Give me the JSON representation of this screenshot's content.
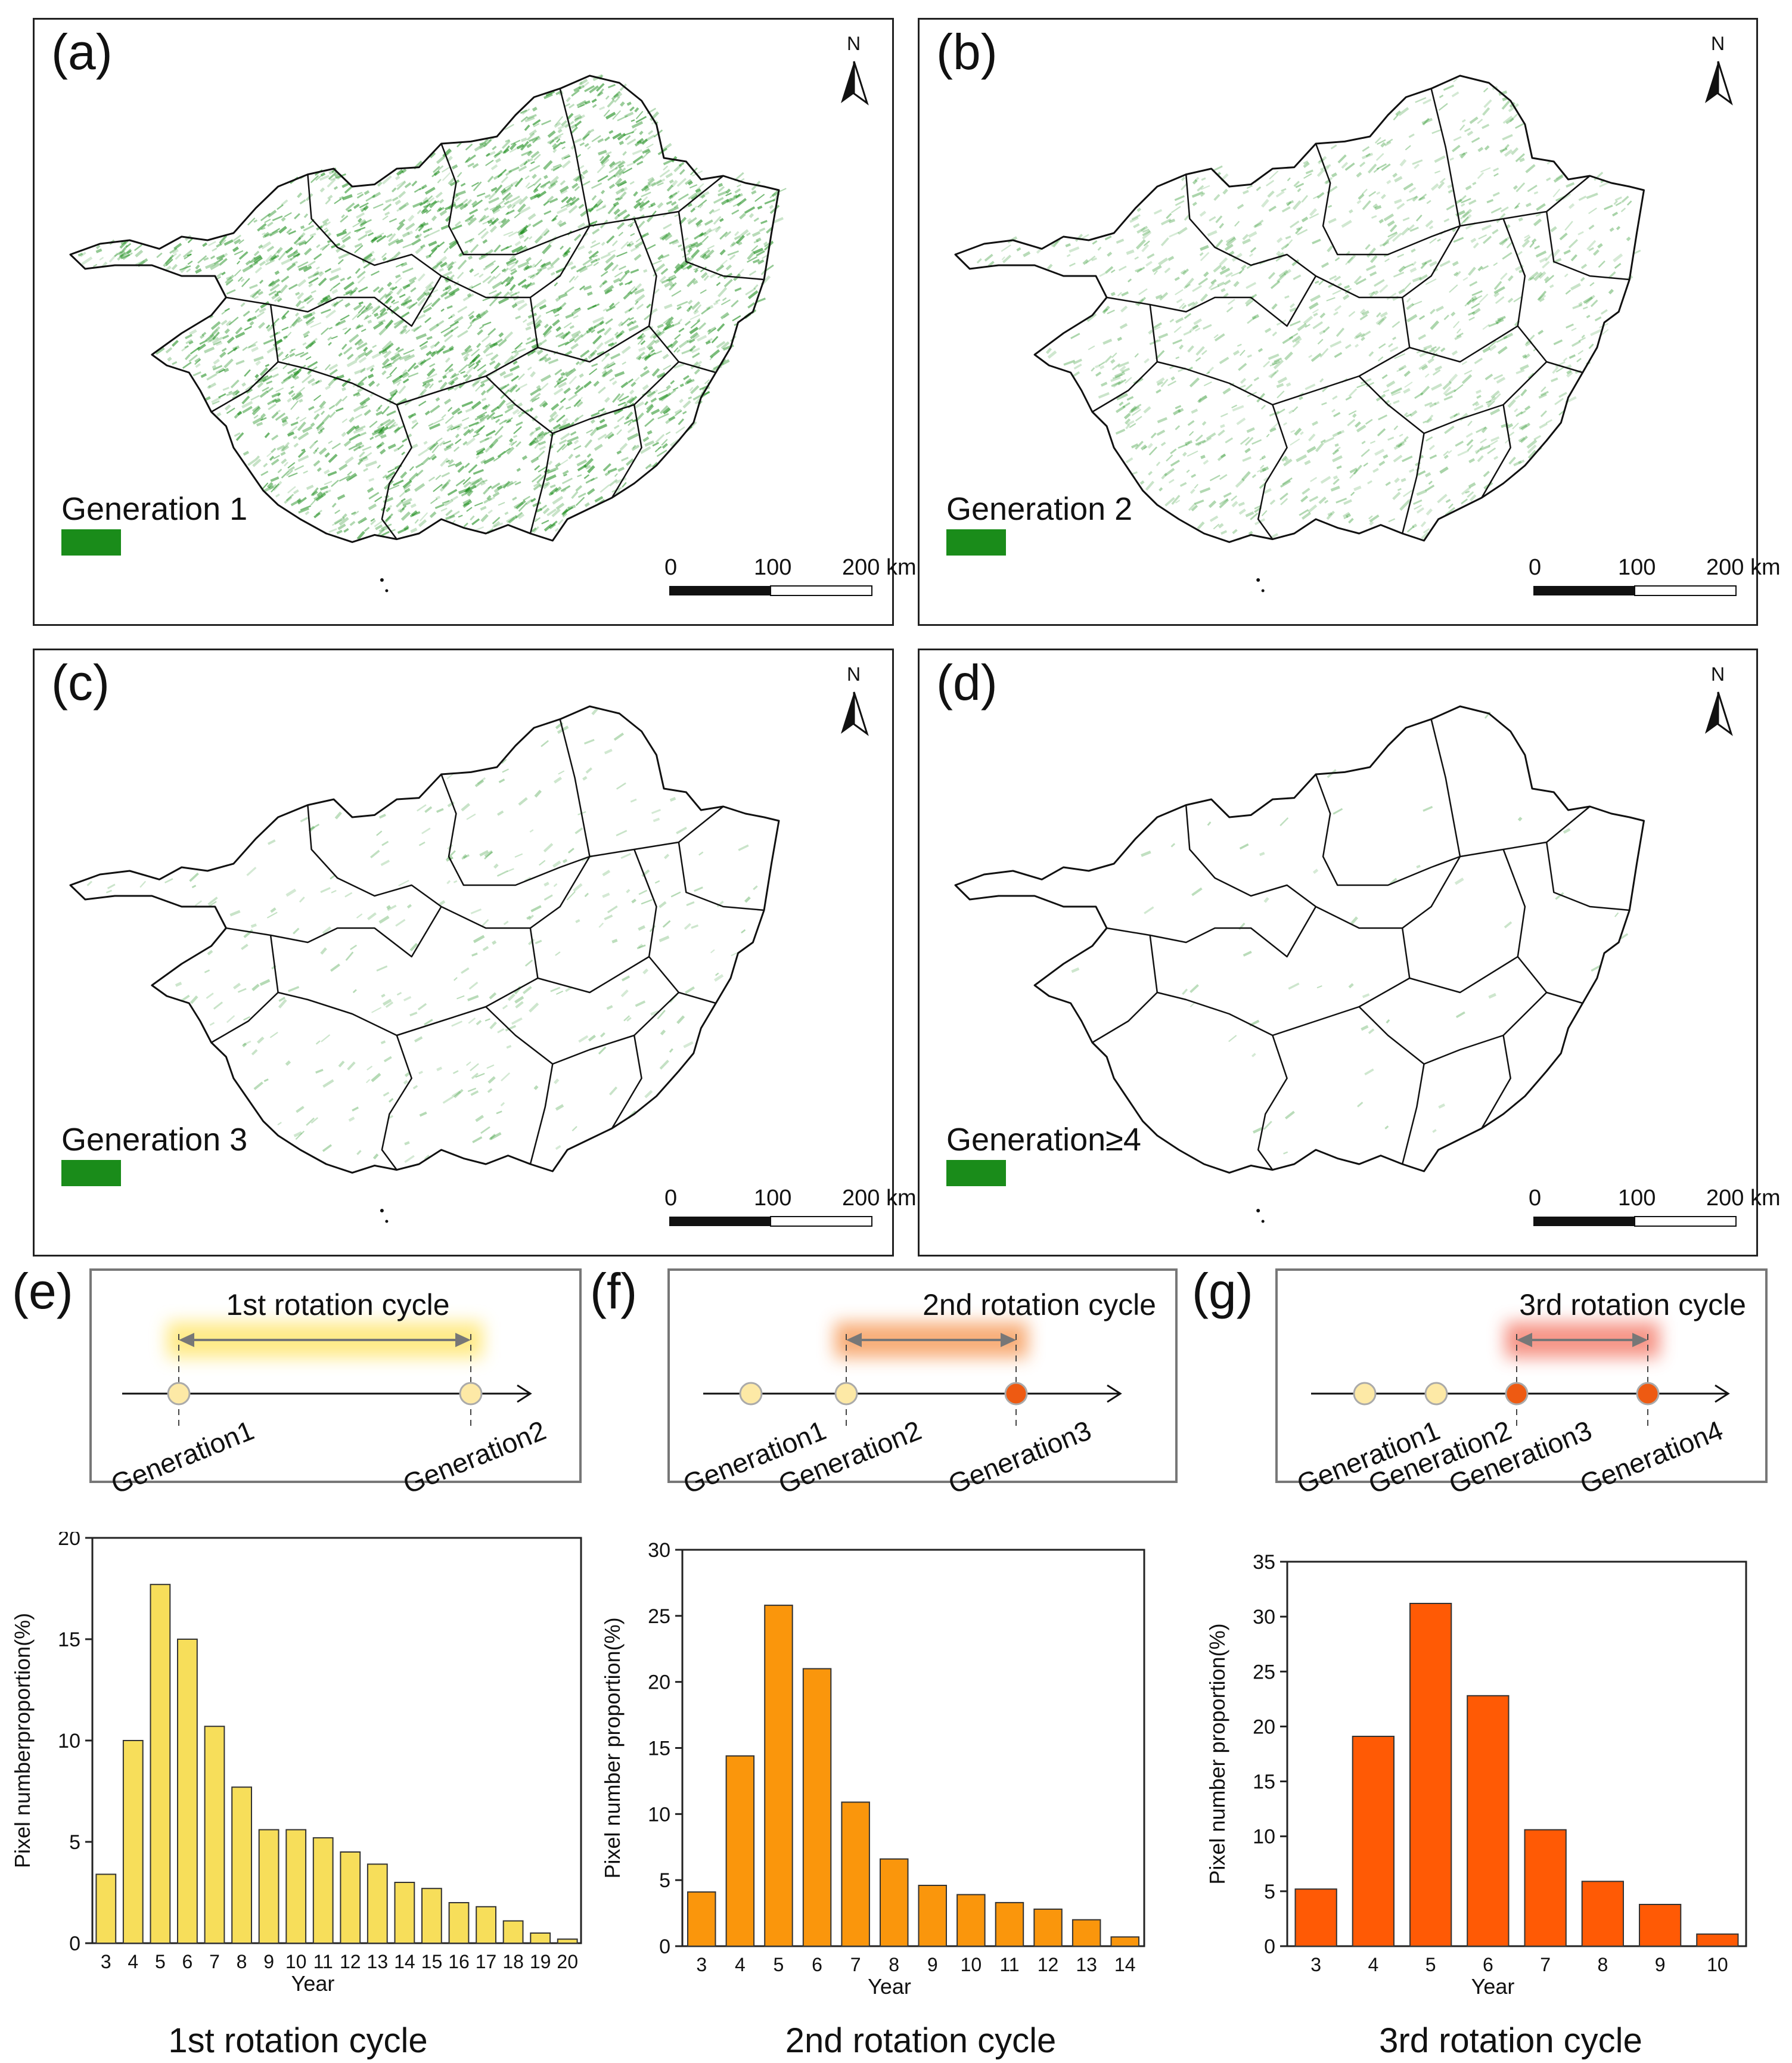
{
  "maps": [
    {
      "letter": "(a)",
      "legend": "Generation 1",
      "density": 1.0
    },
    {
      "letter": "(b)",
      "legend": "Generation 2",
      "density": 0.45
    },
    {
      "letter": "(c)",
      "legend": "Generation 3",
      "density": 0.12
    },
    {
      "letter": "(d)",
      "legend": "Generation≥4",
      "density": 0.02
    }
  ],
  "map_common": {
    "north": "N",
    "scale_0": "0",
    "scale_100": "100",
    "scale_200": "200 km",
    "legend_color": "#1a8c1a",
    "boundary_color": "#111111"
  },
  "diagrams": [
    {
      "letter": "(e)",
      "title": "1st rotation cycle",
      "glow": "#ffe87a",
      "generations": [
        "Generation1",
        "Generation2"
      ]
    },
    {
      "letter": "(f)",
      "title": "2nd rotation  cycle",
      "glow": "#f7a56a",
      "generations": [
        "Generation1",
        "Generation2",
        "Generation3"
      ]
    },
    {
      "letter": "(g)",
      "title": "3rd rotation  cycle",
      "glow": "#f58a7a",
      "generations": [
        "Generation1",
        "Generation2",
        "Generation3",
        "Generation4"
      ]
    }
  ],
  "colors": {
    "light_dot": "#fde9a6",
    "dark_dot": "#ee5a12",
    "arrow": "#777777"
  },
  "chart_data": [
    {
      "type": "bar",
      "title": "1st rotation cycle",
      "xlabel": "Year",
      "ylabel": "Pixel numberproportion(%)",
      "categories": [
        "3",
        "4",
        "5",
        "6",
        "7",
        "8",
        "9",
        "10",
        "11",
        "12",
        "13",
        "14",
        "15",
        "16",
        "17",
        "18",
        "19",
        "20"
      ],
      "values": [
        3.4,
        10.0,
        17.7,
        15.0,
        10.7,
        7.7,
        5.6,
        5.6,
        5.2,
        4.5,
        3.9,
        3.0,
        2.7,
        2.0,
        1.8,
        1.1,
        0.5,
        0.2
      ],
      "ylim": [
        0,
        20
      ],
      "yticks": [
        "0",
        "5",
        "10",
        "15",
        "20"
      ],
      "bar_color": "#f7de5a"
    },
    {
      "type": "bar",
      "title": "2nd rotation cycle",
      "xlabel": "Year",
      "ylabel": "Pixel number proportion(%)",
      "categories": [
        "3",
        "4",
        "5",
        "6",
        "7",
        "8",
        "9",
        "10",
        "11",
        "12",
        "13",
        "14"
      ],
      "values": [
        4.1,
        14.4,
        25.8,
        21.0,
        10.9,
        6.6,
        4.6,
        3.9,
        3.3,
        2.8,
        2.0,
        0.7
      ],
      "ylim": [
        0,
        30
      ],
      "yticks": [
        "0",
        "5",
        "10",
        "15",
        "20",
        "25",
        "30"
      ],
      "bar_color": "#fa960c"
    },
    {
      "type": "bar",
      "title": "3rd rotation cycle",
      "xlabel": "Year",
      "ylabel": "Pixel number proportion(%)",
      "categories": [
        "3",
        "4",
        "5",
        "6",
        "7",
        "8",
        "9",
        "10"
      ],
      "values": [
        5.2,
        19.1,
        31.2,
        22.8,
        10.6,
        5.9,
        3.8,
        1.1
      ],
      "ylim": [
        0,
        35
      ],
      "yticks": [
        "0",
        "5",
        "10",
        "15",
        "20",
        "25",
        "30",
        "35"
      ],
      "bar_color": "#ff5a05"
    }
  ]
}
